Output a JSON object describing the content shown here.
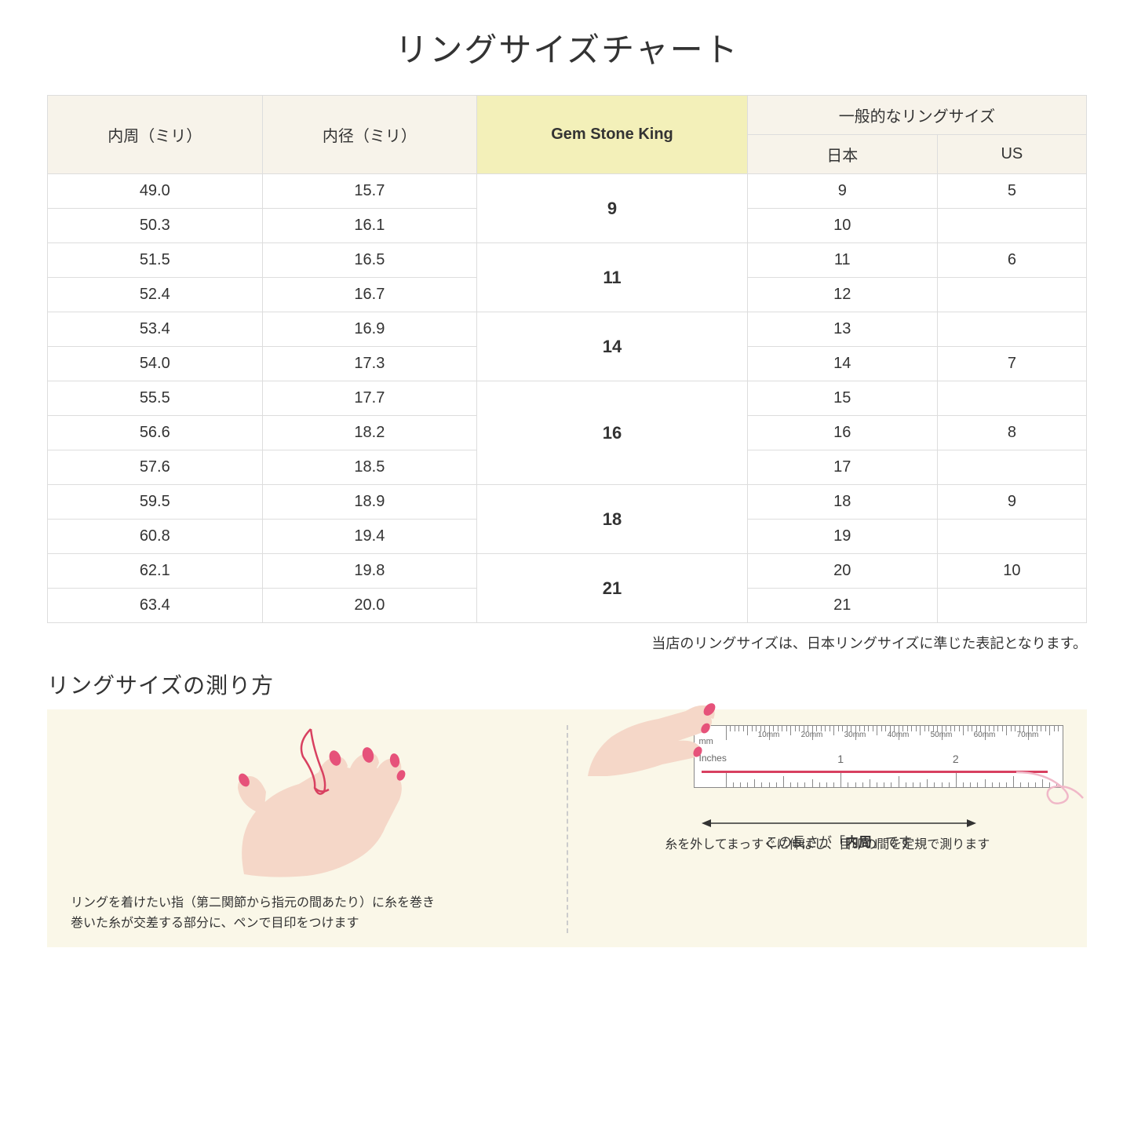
{
  "title": "リングサイズチャート",
  "table": {
    "headers": {
      "col1": "内周（ミリ）",
      "col2": "内径（ミリ）",
      "col3": "Gem Stone King",
      "col4_group": "一般的なリングサイズ",
      "col4a": "日本",
      "col4b": "US"
    },
    "groups": [
      {
        "gsk": "9",
        "rows": [
          {
            "c": "49.0",
            "d": "15.7",
            "jp": "9",
            "us": "5"
          },
          {
            "c": "50.3",
            "d": "16.1",
            "jp": "10",
            "us": ""
          }
        ]
      },
      {
        "gsk": "11",
        "rows": [
          {
            "c": "51.5",
            "d": "16.5",
            "jp": "11",
            "us": "6"
          },
          {
            "c": "52.4",
            "d": "16.7",
            "jp": "12",
            "us": ""
          }
        ]
      },
      {
        "gsk": "14",
        "rows": [
          {
            "c": "53.4",
            "d": "16.9",
            "jp": "13",
            "us": ""
          },
          {
            "c": "54.0",
            "d": "17.3",
            "jp": "14",
            "us": "7"
          }
        ]
      },
      {
        "gsk": "16",
        "rows": [
          {
            "c": "55.5",
            "d": "17.7",
            "jp": "15",
            "us": ""
          },
          {
            "c": "56.6",
            "d": "18.2",
            "jp": "16",
            "us": "8"
          },
          {
            "c": "57.6",
            "d": "18.5",
            "jp": "17",
            "us": ""
          }
        ]
      },
      {
        "gsk": "18",
        "rows": [
          {
            "c": "59.5",
            "d": "18.9",
            "jp": "18",
            "us": "9"
          },
          {
            "c": "60.8",
            "d": "19.4",
            "jp": "19",
            "us": ""
          }
        ]
      },
      {
        "gsk": "21",
        "rows": [
          {
            "c": "62.1",
            "d": "19.8",
            "jp": "20",
            "us": "10"
          },
          {
            "c": "63.4",
            "d": "20.0",
            "jp": "21",
            "us": ""
          }
        ]
      }
    ],
    "colors": {
      "header_bg": "#f7f3ea",
      "highlight_bg": "#f3f0b9",
      "border": "#dddddd"
    }
  },
  "note": "当店のリングサイズは、日本リングサイズに準じた表記となります。",
  "howto": {
    "title": "リングサイズの測り方",
    "bg": "#faf7e8",
    "panel1": {
      "caption": "リングを着けたい指（第二関節から指元の間あたり）に糸を巻き\n巻いた糸が交差する部分に、ペンで目印をつけます"
    },
    "panel2": {
      "ruler": {
        "mm_labels": [
          "10mm",
          "20mm",
          "30mm",
          "40mm",
          "50mm",
          "60mm",
          "70mm"
        ],
        "unit_mm": "mm",
        "unit_in": "Inches",
        "in_nums": [
          "1",
          "2"
        ]
      },
      "arrow_text_pre": "この長さが「",
      "arrow_text_bold": "内周",
      "arrow_text_post": "」です",
      "caption": "糸を外してまっすぐに伸ばし、目印の間を定規で測ります"
    },
    "colors": {
      "skin": "#f5d7c8",
      "skin_dark": "#e8bfa8",
      "nail": "#e6527a",
      "thread": "#d84060"
    }
  }
}
